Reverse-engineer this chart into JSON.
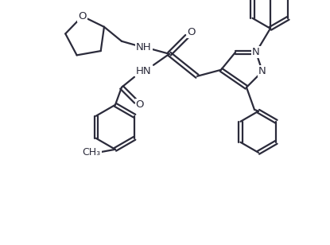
{
  "background_color": "#ffffff",
  "line_color": "#2b2b3b",
  "line_width": 1.6,
  "font_size": 9.5,
  "figsize": [
    4.15,
    3.08
  ],
  "dpi": 100,
  "xlim": [
    0,
    415
  ],
  "ylim": [
    0,
    308
  ]
}
